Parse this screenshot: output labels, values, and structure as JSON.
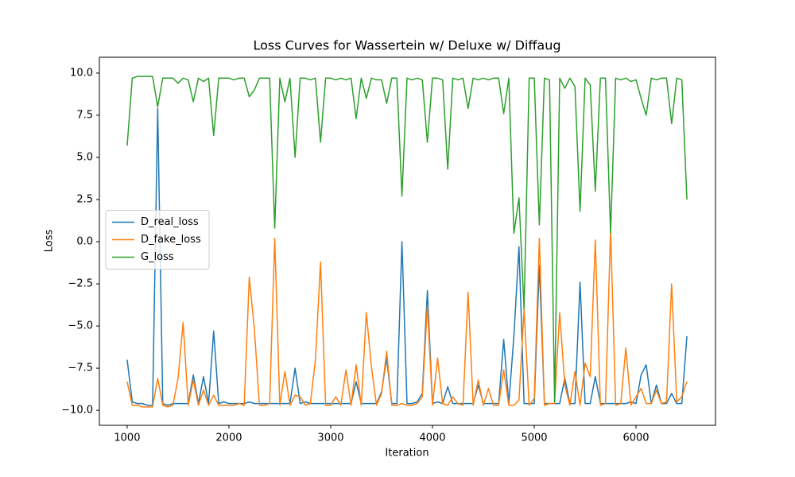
{
  "chart_data": {
    "type": "line",
    "title": "Loss Curves for Wassertein w/ Deluxe w/ Diffaug",
    "xlabel": "Iteration",
    "ylabel": "Loss",
    "x": [
      1000,
      1050,
      1100,
      1150,
      1200,
      1250,
      1300,
      1350,
      1400,
      1450,
      1500,
      1550,
      1600,
      1650,
      1700,
      1750,
      1800,
      1850,
      1900,
      1950,
      2000,
      2050,
      2100,
      2150,
      2200,
      2250,
      2300,
      2350,
      2400,
      2450,
      2500,
      2550,
      2600,
      2650,
      2700,
      2750,
      2800,
      2850,
      2900,
      2950,
      3000,
      3050,
      3100,
      3150,
      3200,
      3250,
      3300,
      3350,
      3400,
      3450,
      3500,
      3550,
      3600,
      3650,
      3700,
      3750,
      3800,
      3850,
      3900,
      3950,
      4000,
      4050,
      4100,
      4150,
      4200,
      4250,
      4300,
      4350,
      4400,
      4450,
      4500,
      4550,
      4600,
      4650,
      4700,
      4750,
      4800,
      4850,
      4900,
      4950,
      5000,
      5050,
      5100,
      5150,
      5200,
      5250,
      5300,
      5350,
      5400,
      5450,
      5500,
      5550,
      5600,
      5650,
      5700,
      5750,
      5800,
      5850,
      5900,
      5950,
      6000,
      6050,
      6100,
      6150,
      6200,
      6250,
      6300,
      6350,
      6400,
      6450,
      6500
    ],
    "series": [
      {
        "name": "D_real_loss",
        "color": "#1f77b4",
        "values": [
          -7.0,
          -9.5,
          -9.6,
          -9.6,
          -9.7,
          -9.7,
          7.9,
          -9.6,
          -9.7,
          -9.6,
          -9.6,
          -9.6,
          -9.6,
          -7.9,
          -9.6,
          -8.0,
          -9.6,
          -5.3,
          -9.6,
          -9.5,
          -9.6,
          -9.6,
          -9.6,
          -9.6,
          -9.5,
          -9.6,
          -9.6,
          -9.6,
          -9.6,
          -9.6,
          -9.6,
          -9.6,
          -9.6,
          -7.5,
          -9.6,
          -9.5,
          -9.6,
          -9.6,
          -9.6,
          -9.6,
          -9.6,
          -9.6,
          -9.6,
          -9.6,
          -9.6,
          -8.3,
          -9.6,
          -9.6,
          -9.6,
          -9.6,
          -8.9,
          -6.9,
          -9.6,
          -9.6,
          0.0,
          -9.6,
          -9.6,
          -9.5,
          -9.0,
          -2.9,
          -9.6,
          -9.5,
          -9.6,
          -8.6,
          -9.6,
          -9.6,
          -9.6,
          -9.6,
          -9.6,
          -8.5,
          -9.6,
          -9.6,
          -9.6,
          -9.6,
          -5.8,
          -9.6,
          -5.6,
          -0.3,
          -9.6,
          -9.6,
          -9.6,
          -1.4,
          -9.6,
          -9.6,
          -9.6,
          -9.6,
          -8.1,
          -9.6,
          -9.6,
          -2.4,
          -9.6,
          -9.6,
          -8.0,
          -9.6,
          -9.6,
          -9.6,
          -9.6,
          -9.6,
          -9.6,
          -9.5,
          -9.6,
          -7.9,
          -7.3,
          -9.6,
          -8.5,
          -9.6,
          -9.6,
          -9.0,
          -9.6,
          -9.6,
          -5.6
        ]
      },
      {
        "name": "D_fake_loss",
        "color": "#ff7f0e",
        "values": [
          -8.3,
          -9.7,
          -9.7,
          -9.8,
          -9.8,
          -9.8,
          -8.1,
          -9.7,
          -9.8,
          -9.7,
          -8.1,
          -4.8,
          -9.7,
          -8.2,
          -9.7,
          -8.8,
          -9.7,
          -9.1,
          -9.7,
          -9.7,
          -9.7,
          -9.7,
          -9.6,
          -9.7,
          -2.1,
          -5.2,
          -9.7,
          -9.7,
          -9.6,
          0.2,
          -9.7,
          -7.7,
          -9.7,
          -9.1,
          -9.2,
          -9.7,
          -9.6,
          -7.0,
          -1.2,
          -9.7,
          -9.7,
          -9.2,
          -9.7,
          -7.6,
          -9.7,
          -7.3,
          -9.7,
          -4.2,
          -7.4,
          -9.7,
          -9.0,
          -6.5,
          -9.7,
          -9.7,
          -9.6,
          -9.7,
          -9.7,
          -9.6,
          -9.2,
          -3.8,
          -9.7,
          -6.9,
          -9.6,
          -9.7,
          -9.2,
          -9.6,
          -9.7,
          -3.0,
          -9.7,
          -8.2,
          -9.7,
          -8.7,
          -9.7,
          -9.7,
          -7.6,
          -9.7,
          -9.7,
          -9.4,
          -4.0,
          -9.7,
          -9.3,
          0.2,
          -9.7,
          -9.6,
          -9.6,
          -4.2,
          -8.5,
          -9.7,
          -7.7,
          -9.7,
          -7.2,
          -8.0,
          0.1,
          -9.7,
          -9.6,
          0.7,
          -9.7,
          -9.6,
          -6.3,
          -9.7,
          -9.2,
          -8.7,
          -9.6,
          -9.6,
          -8.8,
          -9.6,
          -9.5,
          -2.5,
          -9.5,
          -9.2,
          -8.3
        ]
      },
      {
        "name": "G_loss",
        "color": "#2ca02c",
        "values": [
          5.7,
          9.7,
          9.8,
          9.8,
          9.8,
          9.8,
          8.0,
          9.7,
          9.7,
          9.7,
          9.4,
          9.7,
          9.6,
          8.3,
          9.7,
          9.5,
          9.7,
          6.3,
          9.7,
          9.7,
          9.7,
          9.6,
          9.7,
          9.7,
          8.6,
          9.0,
          9.7,
          9.7,
          9.7,
          0.8,
          9.7,
          8.3,
          9.7,
          5.0,
          9.7,
          9.7,
          9.6,
          9.7,
          5.9,
          9.7,
          9.7,
          9.6,
          9.7,
          9.6,
          9.7,
          7.3,
          9.7,
          8.5,
          9.7,
          9.6,
          9.6,
          8.2,
          9.7,
          9.7,
          2.7,
          9.7,
          9.6,
          9.7,
          9.6,
          5.9,
          9.7,
          9.7,
          9.6,
          4.3,
          9.7,
          9.6,
          9.7,
          7.9,
          9.7,
          9.6,
          9.7,
          9.6,
          9.7,
          9.7,
          7.6,
          9.7,
          0.5,
          2.6,
          -4.0,
          9.7,
          9.7,
          1.0,
          9.7,
          9.6,
          -9.5,
          9.7,
          9.1,
          9.7,
          9.2,
          1.8,
          9.7,
          9.3,
          3.0,
          9.7,
          9.7,
          0.5,
          9.7,
          9.6,
          9.7,
          9.5,
          9.6,
          8.5,
          7.5,
          9.7,
          9.6,
          9.7,
          9.7,
          7.0,
          9.7,
          9.6,
          2.5
        ]
      }
    ],
    "xlim": [
      727,
      6781
    ],
    "ylim": [
      -10.89,
      10.94
    ],
    "xticks": [
      1000,
      2000,
      3000,
      4000,
      5000,
      6000
    ],
    "yticks": [
      {
        "value": -10,
        "label": "−10.0"
      },
      {
        "value": -7.5,
        "label": "−7.5"
      },
      {
        "value": -5,
        "label": "−5.0"
      },
      {
        "value": -2.5,
        "label": "−2.5"
      },
      {
        "value": 0,
        "label": "0.0"
      },
      2.5,
      {
        "value": 5,
        "label": "5.0"
      },
      7.5,
      {
        "value": 10,
        "label": "10.0"
      }
    ],
    "legend": "center left"
  }
}
